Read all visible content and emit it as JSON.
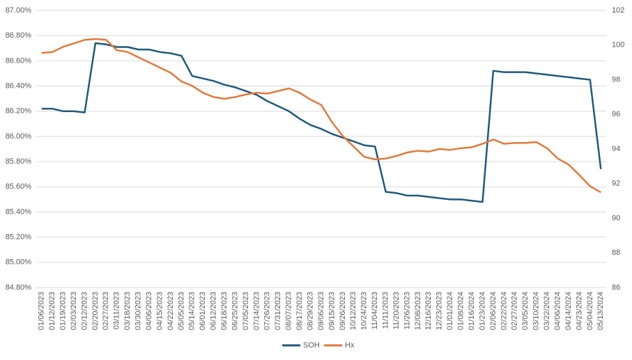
{
  "chart_data": {
    "type": "line",
    "categories": [
      "01/06/2023",
      "01/12/2023",
      "01/19/2023",
      "02/03/2023",
      "02/12/2023",
      "02/20/2023",
      "02/27/2023",
      "03/11/2023",
      "03/18/2023",
      "03/30/2023",
      "04/06/2023",
      "04/15/2023",
      "04/22/2023",
      "05/05/2023",
      "05/14/2023",
      "06/01/2023",
      "06/12/2023",
      "06/18/2023",
      "06/25/2023",
      "07/05/2023",
      "07/14/2023",
      "07/26/2023",
      "07/31/2023",
      "08/07/2023",
      "08/17/2023",
      "08/29/2023",
      "09/06/2023",
      "09/15/2023",
      "09/26/2023",
      "10/12/2023",
      "10/24/2023",
      "11/04/2023",
      "11/11/2023",
      "11/20/2023",
      "11/26/2023",
      "12/08/2023",
      "12/16/2023",
      "12/23/2023",
      "01/01/2024",
      "01/08/2024",
      "01/16/2024",
      "01/23/2024",
      "02/06/2024",
      "02/22/2024",
      "02/27/2024",
      "03/05/2024",
      "03/10/2024",
      "03/22/2024",
      "04/06/2024",
      "04/14/2024",
      "04/23/2024",
      "05/04/2024",
      "05/13/2024"
    ],
    "series": [
      {
        "name": "SOH",
        "color": "#1f5a7a",
        "values": [
          86.22,
          86.22,
          86.2,
          86.2,
          86.19,
          86.74,
          86.73,
          86.71,
          86.71,
          86.69,
          86.69,
          86.67,
          86.66,
          86.64,
          86.48,
          86.46,
          86.44,
          86.41,
          86.39,
          86.36,
          86.33,
          86.28,
          86.24,
          86.2,
          86.14,
          86.09,
          86.06,
          86.02,
          85.99,
          85.96,
          85.93,
          85.92,
          85.56,
          85.55,
          85.53,
          85.53,
          85.52,
          85.51,
          85.5,
          85.5,
          85.49,
          85.48,
          86.52,
          86.51,
          86.51,
          86.51,
          86.5,
          86.49,
          86.48,
          86.47,
          86.46,
          86.45,
          85.74
        ]
      },
      {
        "name": "Hx",
        "color": "#e07a3c",
        "axis": "y2",
        "values": [
          99.55,
          99.6,
          99.9,
          100.1,
          100.3,
          100.35,
          100.3,
          99.7,
          99.6,
          99.3,
          99.0,
          98.7,
          98.4,
          97.9,
          97.65,
          97.25,
          97.0,
          96.9,
          97.0,
          97.15,
          97.25,
          97.2,
          97.35,
          97.5,
          97.25,
          96.85,
          96.55,
          95.55,
          94.75,
          94.15,
          93.55,
          93.4,
          93.45,
          93.6,
          93.8,
          93.9,
          93.85,
          94.0,
          93.95,
          94.05,
          94.1,
          94.3,
          94.55,
          94.3,
          94.35,
          94.35,
          94.4,
          94.05,
          93.45,
          93.1,
          92.5,
          91.85,
          91.5
        ]
      }
    ],
    "ylim": [
      84.8,
      87.0
    ],
    "yticks": [
      {
        "value": 84.8,
        "label": "84.80%"
      },
      {
        "value": 85.0,
        "label": "85.00%"
      },
      {
        "value": 85.2,
        "label": "85.20%"
      },
      {
        "value": 85.4,
        "label": "85.40%"
      },
      {
        "value": 85.6,
        "label": "85.60%"
      },
      {
        "value": 85.8,
        "label": "85.80%"
      },
      {
        "value": 86.0,
        "label": "86.00%"
      },
      {
        "value": 86.2,
        "label": "86.20%"
      },
      {
        "value": 86.4,
        "label": "86.40%"
      },
      {
        "value": 86.6,
        "label": "86.60%"
      },
      {
        "value": 86.8,
        "label": "86.80%"
      },
      {
        "value": 87.0,
        "label": "87.00%"
      }
    ],
    "y2lim": [
      86,
      102
    ],
    "y2ticks": [
      86,
      88,
      90,
      92,
      94,
      96,
      98,
      100,
      102
    ],
    "grid": true,
    "legend": "bottom"
  }
}
